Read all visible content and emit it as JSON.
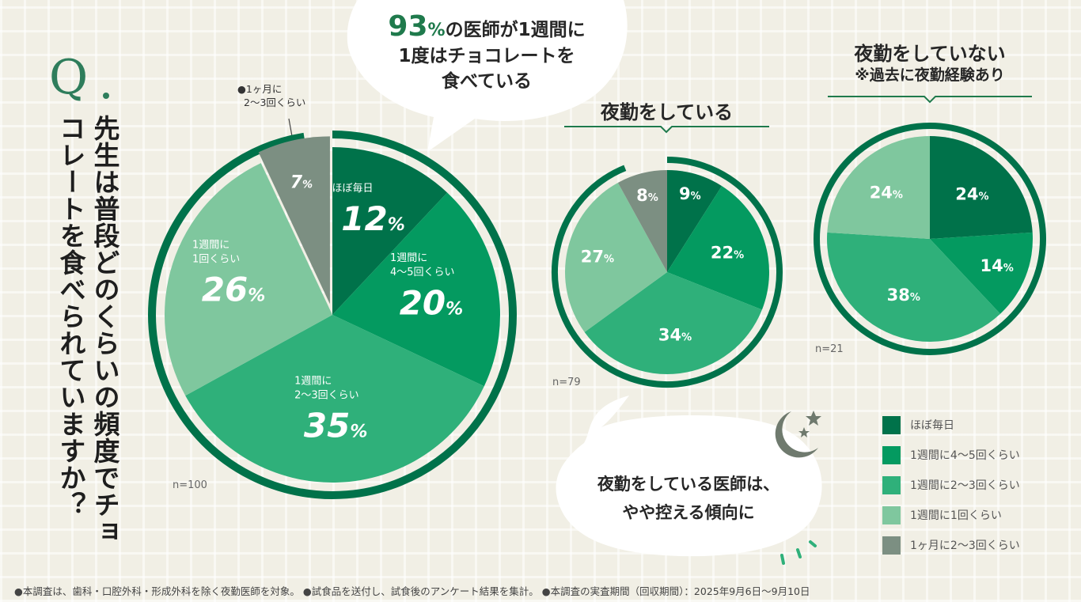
{
  "question": {
    "mark": "Q",
    "text": "先生は普段どのくらいの頻度でチョコレートを食べられていますか？"
  },
  "bubble_top": {
    "highlight_value": "93",
    "highlight_unit": "%",
    "line1_rest": "の医師が1週間に",
    "line2": "1度はチョコレートを",
    "line3": "食べている"
  },
  "bubble_bottom": {
    "line1": "夜勤をしている医師は、",
    "line2": "やや控える傾向に"
  },
  "chart_data": [
    {
      "type": "pie",
      "title": "",
      "n_label": "n=100",
      "slices": [
        {
          "category": "ほぼ毎日",
          "label_lines": [
            "ほぼ毎日"
          ],
          "value": 12
        },
        {
          "category": "1週間に4〜5回くらい",
          "label_lines": [
            "1週間に",
            "4〜5回くらい"
          ],
          "value": 20
        },
        {
          "category": "1週間に2〜3回くらい",
          "label_lines": [
            "1週間に",
            "2〜3回くらい"
          ],
          "value": 35
        },
        {
          "category": "1週間に1回くらい",
          "label_lines": [
            "1週間に",
            "1回くらい"
          ],
          "value": 26
        },
        {
          "category": "1ヶ月に2〜3回くらい",
          "label_lines": [],
          "value": 7,
          "exploded": true
        }
      ],
      "callout_lines": [
        "●1ヶ月に",
        "2〜3回くらい"
      ]
    },
    {
      "type": "pie",
      "title": "夜勤をしている",
      "n_label": "n=79",
      "slices": [
        {
          "category": "ほぼ毎日",
          "value": 9
        },
        {
          "category": "1週間に4〜5回くらい",
          "value": 22
        },
        {
          "category": "1週間に2〜3回くらい",
          "value": 34
        },
        {
          "category": "1週間に1回くらい",
          "value": 27
        },
        {
          "category": "1ヶ月に2〜3回くらい",
          "value": 8
        }
      ]
    },
    {
      "type": "pie",
      "title": "夜勤をしていない",
      "subtitle": "※過去に夜勤経験あり",
      "n_label": "n=21",
      "slices": [
        {
          "category": "ほぼ毎日",
          "value": 24
        },
        {
          "category": "1週間に4〜5回くらい",
          "value": 14
        },
        {
          "category": "1週間に2〜3回くらい",
          "value": 38
        },
        {
          "category": "1週間に1回くらい",
          "value": 24
        },
        {
          "category": "1ヶ月に2〜3回くらい",
          "value": 0
        }
      ]
    }
  ],
  "legend": [
    {
      "label": "ほぼ毎日",
      "color": "#00724a"
    },
    {
      "label": "1週間に4〜5回くらい",
      "color": "#049a60"
    },
    {
      "label": "1週間に2〜3回くらい",
      "color": "#2fb07a"
    },
    {
      "label": "1週間に1回くらい",
      "color": "#7fc79e"
    },
    {
      "label": "1ヶ月に2〜3回くらい",
      "color": "#7c8f82"
    }
  ],
  "percent_unit": "%",
  "colors": {
    "ring": "#00724a",
    "accent": "#1f7a4c",
    "moon": "#6f7a6e"
  },
  "footnote": "●本調査は、歯科・口腔外科・形成外科を除く夜勤医師を対象。 ●試食品を送付し、試食後のアンケート結果を集計。 ●本調査の実査期間（回収期間）：2025年9月6日〜9月10日"
}
